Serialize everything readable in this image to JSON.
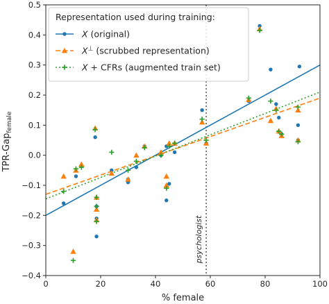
{
  "chart_data": {
    "type": "scatter",
    "xlabel": "% female",
    "ylabel": "TPR-Gap",
    "ylabel_sub": "female",
    "xlim": [
      0,
      100
    ],
    "ylim": [
      -0.4,
      0.5
    ],
    "x_ticks": [
      0,
      20,
      40,
      60,
      80,
      100
    ],
    "y_ticks": [
      -0.4,
      -0.3,
      -0.2,
      -0.1,
      0.0,
      0.1,
      0.2,
      0.3,
      0.4,
      0.5
    ],
    "x_tick_labels": [
      "0",
      "20",
      "40",
      "60",
      "80",
      "100"
    ],
    "y_tick_labels": [
      "−0.4",
      "−0.3",
      "−0.2",
      "−0.1",
      "0.0",
      "0.1",
      "0.2",
      "0.3",
      "0.4",
      "0.5"
    ],
    "grid": false,
    "legend_title": "Representation used during training:",
    "legend_placement": "top-left",
    "reference_line": {
      "x": 58.5,
      "label": "psychologist",
      "style": "dotted",
      "color": "#555555"
    },
    "series": [
      {
        "name": "X (original)",
        "name_parts": {
          "base": "X",
          "sup": "",
          "rest": " (original)"
        },
        "marker": "circle",
        "line_style": "solid",
        "color": "#1f77b4",
        "fit": {
          "x": [
            0,
            100
          ],
          "y": [
            -0.2,
            0.3
          ]
        },
        "x": [
          6.5,
          11,
          13,
          18,
          18.5,
          18.5,
          18.5,
          24,
          30,
          30,
          33,
          36,
          42,
          44,
          44,
          45,
          47,
          57,
          58.5,
          74,
          78,
          82,
          84,
          85,
          86,
          92,
          92,
          92.5
        ],
        "y": [
          -0.16,
          -0.07,
          -0.035,
          0.06,
          -0.17,
          -0.21,
          -0.27,
          -0.05,
          -0.09,
          -0.08,
          -0.04,
          0.03,
          0.0,
          0.03,
          -0.15,
          -0.095,
          0.01,
          0.15,
          0.04,
          0.18,
          0.43,
          0.285,
          0.17,
          0.125,
          0.07,
          0.1,
          0.05,
          0.295
        ]
      },
      {
        "name": "X⊥ (scrubbed representation)",
        "name_parts": {
          "base": "X",
          "sup": "⊥",
          "rest": " (scrubbed representation)"
        },
        "marker": "triangle",
        "line_style": "dashed",
        "color": "#ff7f0e",
        "fit": {
          "x": [
            0,
            100
          ],
          "y": [
            -0.13,
            0.19
          ]
        },
        "x": [
          6.5,
          10,
          11,
          13,
          18,
          18.5,
          18.5,
          18.5,
          24,
          30,
          33,
          36,
          42,
          44,
          44,
          45,
          47,
          57,
          58.5,
          74,
          78,
          82,
          84,
          85,
          86,
          92,
          92
        ],
        "y": [
          -0.07,
          -0.32,
          -0.05,
          -0.03,
          0.09,
          -0.14,
          -0.18,
          -0.215,
          -0.06,
          -0.08,
          0.0,
          0.03,
          0.01,
          -0.07,
          -0.1,
          0.04,
          0.04,
          0.11,
          0.04,
          0.185,
          0.42,
          0.115,
          0.155,
          0.08,
          0.065,
          0.05,
          0.15
        ]
      },
      {
        "name": "X + CFRs (augmented train set)",
        "name_parts": {
          "base": "X",
          "sup": "",
          "rest": " + CFRs (augmented train set)"
        },
        "marker": "plus",
        "line_style": "dotted",
        "color": "#2ca02c",
        "fit": {
          "x": [
            0,
            100
          ],
          "y": [
            -0.145,
            0.21
          ]
        },
        "x": [
          6.5,
          10,
          11,
          13,
          18,
          18.5,
          18.5,
          18.5,
          24,
          30,
          33,
          36,
          42,
          44,
          45,
          47,
          57,
          58.5,
          74,
          78,
          82,
          84,
          85,
          86,
          92,
          92
        ],
        "y": [
          -0.12,
          -0.35,
          -0.045,
          -0.04,
          0.085,
          -0.14,
          -0.17,
          -0.22,
          0.01,
          -0.05,
          -0.02,
          0.025,
          0.0,
          -0.11,
          0.03,
          0.04,
          0.12,
          0.05,
          0.19,
          0.415,
          0.18,
          0.15,
          0.08,
          0.07,
          0.045,
          0.16
        ]
      }
    ]
  }
}
